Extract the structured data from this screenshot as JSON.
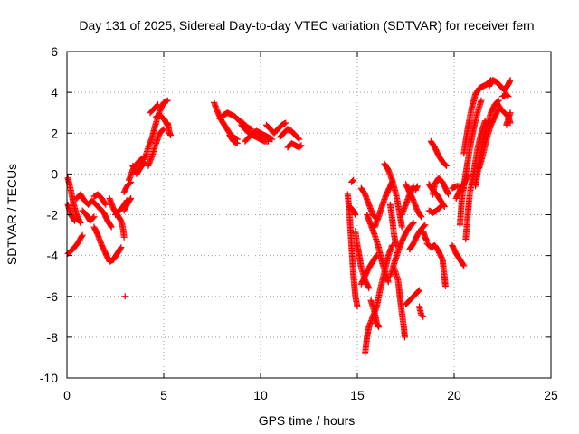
{
  "chart_data": {
    "type": "scatter",
    "title": "Day 131 of 2025, Sidereal Day-to-day VTEC variation (SDTVAR) for receiver fern",
    "xlabel": "GPS time / hours",
    "ylabel": "SDTVAR / TECUs",
    "xlim": [
      0,
      25
    ],
    "ylim": [
      -10,
      6
    ],
    "xticks": [
      0,
      5,
      10,
      15,
      20,
      25
    ],
    "yticks": [
      -10,
      -8,
      -6,
      -4,
      -2,
      0,
      2,
      4,
      6
    ],
    "xtick_labels": [
      "0",
      "5",
      "10",
      "15",
      "20",
      "25"
    ],
    "ytick_labels": [
      "-10",
      "-8",
      "-6",
      "-4",
      "-2",
      "0",
      "2",
      "4",
      "6"
    ],
    "grid": true,
    "marker": "plus",
    "color": "#ff0000",
    "segments": [
      [
        [
          0.05,
          -0.2
        ],
        [
          0.2,
          -0.8
        ],
        [
          0.35,
          -1.5
        ],
        [
          0.5,
          -2.0
        ],
        [
          0.7,
          -2.4
        ]
      ],
      [
        [
          0.05,
          -1.5
        ],
        [
          0.2,
          -2.0
        ],
        [
          0.4,
          -2.3
        ]
      ],
      [
        [
          0.05,
          -3.9
        ],
        [
          0.3,
          -3.7
        ],
        [
          0.55,
          -3.4
        ],
        [
          0.8,
          -3.0
        ]
      ],
      [
        [
          0.5,
          -1.2
        ],
        [
          0.7,
          -1.0
        ],
        [
          0.9,
          -1.3
        ],
        [
          1.1,
          -1.5
        ],
        [
          1.3,
          -1.3
        ],
        [
          1.5,
          -1.5
        ],
        [
          1.7,
          -1.7
        ],
        [
          1.9,
          -1.9
        ],
        [
          2.1,
          -2.3
        ],
        [
          2.3,
          -2.6
        ]
      ],
      [
        [
          0.8,
          -1.8
        ],
        [
          1.0,
          -2.0
        ],
        [
          1.2,
          -2.3
        ],
        [
          1.4,
          -2.1
        ]
      ],
      [
        [
          1.4,
          -2.6
        ],
        [
          1.6,
          -3.0
        ],
        [
          1.8,
          -3.5
        ],
        [
          2.0,
          -3.9
        ],
        [
          2.2,
          -4.3
        ],
        [
          2.4,
          -4.2
        ],
        [
          2.6,
          -3.9
        ],
        [
          2.8,
          -3.6
        ]
      ],
      [
        [
          1.4,
          -1.1
        ],
        [
          1.6,
          -1.0
        ],
        [
          1.8,
          -1.2
        ],
        [
          2.0,
          -1.5
        ]
      ],
      [
        [
          2.2,
          -1.2
        ],
        [
          2.4,
          -1.7
        ],
        [
          2.6,
          -2.0
        ],
        [
          2.8,
          -2.3
        ],
        [
          2.9,
          -2.7
        ],
        [
          2.95,
          -3.1
        ]
      ],
      [
        [
          2.5,
          -2.0
        ],
        [
          2.7,
          -1.8
        ],
        [
          2.9,
          -1.6
        ],
        [
          3.1,
          -1.3
        ]
      ],
      [
        [
          2.95,
          -1.8
        ],
        [
          3.1,
          -1.5
        ],
        [
          3.3,
          -1.2
        ]
      ],
      [
        [
          2.95,
          -0.9
        ],
        [
          3.1,
          -0.6
        ],
        [
          3.3,
          -0.4
        ]
      ],
      [
        [
          3.2,
          -0.3
        ],
        [
          3.4,
          0.2
        ],
        [
          3.6,
          0.5
        ],
        [
          3.8,
          0.7
        ],
        [
          4.0,
          0.8
        ]
      ],
      [
        [
          3.4,
          0.4
        ],
        [
          3.6,
          0.0
        ],
        [
          3.8,
          0.3
        ],
        [
          4.0,
          0.6
        ]
      ],
      [
        [
          4.0,
          0.7
        ],
        [
          4.2,
          1.3
        ],
        [
          4.4,
          1.8
        ],
        [
          4.6,
          2.5
        ],
        [
          4.8,
          3.1
        ],
        [
          5.0,
          3.5
        ],
        [
          5.2,
          3.6
        ]
      ],
      [
        [
          4.2,
          0.4
        ],
        [
          4.4,
          0.9
        ],
        [
          4.6,
          1.5
        ],
        [
          4.8,
          2.0
        ],
        [
          5.0,
          2.2
        ]
      ],
      [
        [
          4.6,
          2.8
        ],
        [
          4.8,
          2.9
        ],
        [
          5.0,
          2.7
        ],
        [
          5.2,
          2.4
        ]
      ],
      [
        [
          4.3,
          3.0
        ],
        [
          4.5,
          3.2
        ],
        [
          4.7,
          3.4
        ]
      ],
      [
        [
          5.2,
          2.5
        ],
        [
          5.3,
          2.0
        ],
        [
          5.35,
          1.9
        ]
      ],
      [
        [
          7.6,
          3.5
        ],
        [
          7.8,
          3.0
        ],
        [
          8.0,
          2.6
        ],
        [
          8.2,
          2.3
        ],
        [
          8.4,
          2.0
        ],
        [
          8.6,
          1.8
        ],
        [
          8.8,
          1.7
        ]
      ],
      [
        [
          7.9,
          2.7
        ],
        [
          8.1,
          2.9
        ],
        [
          8.3,
          3.0
        ],
        [
          8.5,
          2.9
        ],
        [
          8.7,
          2.8
        ],
        [
          8.9,
          2.6
        ],
        [
          9.1,
          2.5
        ],
        [
          9.3,
          2.3
        ],
        [
          9.5,
          2.2
        ]
      ],
      [
        [
          8.4,
          1.9
        ],
        [
          8.6,
          1.6
        ],
        [
          8.8,
          1.5
        ]
      ],
      [
        [
          9.0,
          2.4
        ],
        [
          9.2,
          2.2
        ],
        [
          9.4,
          2.0
        ],
        [
          9.6,
          1.9
        ],
        [
          9.8,
          1.8
        ],
        [
          10.0,
          1.7
        ],
        [
          10.2,
          1.6
        ],
        [
          10.4,
          1.6
        ]
      ],
      [
        [
          9.2,
          1.6
        ],
        [
          9.4,
          1.8
        ],
        [
          9.6,
          2.0
        ],
        [
          9.8,
          2.1
        ],
        [
          10.0,
          2.0
        ],
        [
          10.2,
          1.9
        ],
        [
          10.4,
          1.8
        ],
        [
          10.6,
          1.7
        ]
      ],
      [
        [
          10.3,
          2.4
        ],
        [
          10.5,
          2.2
        ],
        [
          10.7,
          2.0
        ],
        [
          10.9,
          2.2
        ],
        [
          11.1,
          2.4
        ],
        [
          11.3,
          2.5
        ]
      ],
      [
        [
          11.0,
          1.8
        ],
        [
          11.2,
          2.0
        ],
        [
          11.4,
          2.2
        ],
        [
          11.6,
          2.1
        ],
        [
          11.8,
          1.9
        ],
        [
          12.0,
          1.7
        ]
      ],
      [
        [
          11.4,
          1.3
        ],
        [
          11.6,
          1.5
        ],
        [
          11.8,
          1.4
        ],
        [
          12.0,
          1.3
        ],
        [
          12.1,
          1.4
        ]
      ],
      [
        [
          14.5,
          -1.0
        ],
        [
          14.6,
          -2.0
        ],
        [
          14.7,
          -3.5
        ],
        [
          14.8,
          -5.0
        ],
        [
          14.9,
          -6.0
        ],
        [
          15.0,
          -6.5
        ]
      ],
      [
        [
          14.6,
          -1.6
        ],
        [
          14.8,
          -1.8
        ],
        [
          14.9,
          -2.0
        ]
      ],
      [
        [
          14.7,
          -0.4
        ],
        [
          14.8,
          -0.3
        ]
      ],
      [
        [
          14.9,
          -2.8
        ],
        [
          15.0,
          -3.5
        ],
        [
          15.1,
          -4.0
        ],
        [
          15.2,
          -4.6
        ],
        [
          15.4,
          -5.2
        ],
        [
          15.6,
          -5.6
        ]
      ],
      [
        [
          15.2,
          -0.7
        ],
        [
          15.4,
          -1.0
        ],
        [
          15.6,
          -1.5
        ],
        [
          15.8,
          -2.0
        ],
        [
          16.0,
          -2.2
        ]
      ],
      [
        [
          15.2,
          -5.4
        ],
        [
          15.4,
          -5.0
        ],
        [
          15.6,
          -4.6
        ],
        [
          15.8,
          -4.3
        ],
        [
          16.0,
          -4.0
        ]
      ],
      [
        [
          15.4,
          -8.8
        ],
        [
          15.5,
          -8.0
        ],
        [
          15.6,
          -7.5
        ],
        [
          15.8,
          -7.0
        ],
        [
          16.0,
          -6.5
        ],
        [
          16.2,
          -5.6
        ],
        [
          16.4,
          -4.8
        ],
        [
          16.6,
          -4.0
        ],
        [
          16.8,
          -3.5
        ]
      ],
      [
        [
          15.5,
          -2.0
        ],
        [
          15.7,
          -2.5
        ],
        [
          15.9,
          -3.0
        ],
        [
          16.1,
          -3.6
        ],
        [
          16.3,
          -4.4
        ],
        [
          16.5,
          -5.0
        ],
        [
          16.6,
          -5.3
        ]
      ],
      [
        [
          15.7,
          -6.2
        ],
        [
          15.9,
          -6.8
        ],
        [
          16.0,
          -7.3
        ],
        [
          16.1,
          -7.5
        ]
      ],
      [
        [
          15.9,
          -2.6
        ],
        [
          16.1,
          -2.1
        ],
        [
          16.3,
          -1.5
        ],
        [
          16.5,
          -1.0
        ],
        [
          16.7,
          -0.6
        ],
        [
          16.8,
          -0.4
        ]
      ],
      [
        [
          16.4,
          0.5
        ],
        [
          16.6,
          0.2
        ],
        [
          16.8,
          -0.3
        ],
        [
          17.0,
          -1.0
        ],
        [
          17.2,
          -2.0
        ],
        [
          17.3,
          -2.6
        ]
      ],
      [
        [
          16.7,
          -1.5
        ],
        [
          16.8,
          -2.2
        ],
        [
          16.9,
          -3.0
        ],
        [
          17.0,
          -3.5
        ]
      ],
      [
        [
          16.9,
          -4.6
        ],
        [
          17.1,
          -5.2
        ],
        [
          17.2,
          -6.0
        ],
        [
          17.3,
          -6.8
        ],
        [
          17.4,
          -7.5
        ],
        [
          17.45,
          -8.0
        ]
      ],
      [
        [
          16.7,
          -5.0
        ],
        [
          16.9,
          -4.4
        ],
        [
          17.1,
          -3.8
        ],
        [
          17.3,
          -3.3
        ],
        [
          17.5,
          -2.9
        ],
        [
          17.7,
          -2.6
        ],
        [
          17.9,
          -2.4
        ]
      ],
      [
        [
          17.3,
          -2.0
        ],
        [
          17.5,
          -1.5
        ],
        [
          17.7,
          -1.0
        ],
        [
          17.9,
          -0.6
        ]
      ],
      [
        [
          17.5,
          -0.5
        ],
        [
          17.7,
          -0.9
        ],
        [
          17.9,
          -1.3
        ],
        [
          18.1,
          -1.8
        ],
        [
          18.3,
          -2.1
        ]
      ],
      [
        [
          17.5,
          -6.4
        ],
        [
          17.7,
          -6.2
        ],
        [
          17.9,
          -6.0
        ],
        [
          18.1,
          -5.8
        ],
        [
          18.2,
          -5.7
        ]
      ],
      [
        [
          17.7,
          -3.7
        ],
        [
          17.9,
          -3.4
        ],
        [
          18.1,
          -3.0
        ],
        [
          18.3,
          -2.7
        ],
        [
          18.5,
          -2.5
        ]
      ],
      [
        [
          18.0,
          -0.8
        ],
        [
          18.1,
          -0.6
        ]
      ],
      [
        [
          18.2,
          -6.5
        ],
        [
          18.3,
          -6.9
        ],
        [
          18.4,
          -7.0
        ]
      ],
      [
        [
          18.4,
          -2.8
        ],
        [
          18.5,
          -3.1
        ],
        [
          18.6,
          -3.3
        ]
      ],
      [
        [
          18.7,
          -0.5
        ],
        [
          18.9,
          -0.8
        ],
        [
          19.1,
          -1.0
        ],
        [
          19.3,
          -1.3
        ],
        [
          19.5,
          -1.6
        ]
      ],
      [
        [
          18.7,
          -1.8
        ],
        [
          18.9,
          -1.9
        ],
        [
          19.1,
          -1.8
        ],
        [
          19.3,
          -1.6
        ]
      ],
      [
        [
          18.6,
          -3.4
        ],
        [
          18.8,
          -3.6
        ],
        [
          19.0,
          -3.5
        ],
        [
          19.2,
          -3.8
        ],
        [
          19.4,
          -4.2
        ],
        [
          19.5,
          -5.0
        ],
        [
          19.55,
          -5.5
        ]
      ],
      [
        [
          18.8,
          1.6
        ],
        [
          19.0,
          1.3
        ],
        [
          19.2,
          0.9
        ],
        [
          19.4,
          0.6
        ],
        [
          19.6,
          0.4
        ]
      ],
      [
        [
          18.9,
          -1.0
        ],
        [
          19.0,
          -0.5
        ],
        [
          19.2,
          -0.2
        ],
        [
          19.4,
          -0.4
        ],
        [
          19.6,
          -0.8
        ],
        [
          19.7,
          -1.0
        ]
      ],
      [
        [
          19.9,
          -3.5
        ],
        [
          20.1,
          -3.9
        ],
        [
          20.3,
          -4.2
        ],
        [
          20.5,
          -4.5
        ]
      ],
      [
        [
          19.9,
          -0.7
        ],
        [
          20.1,
          -0.6
        ],
        [
          20.3,
          -0.6
        ],
        [
          20.5,
          -0.7
        ]
      ],
      [
        [
          20.1,
          -1.2
        ],
        [
          20.3,
          -0.8
        ],
        [
          20.5,
          -0.5
        ],
        [
          20.7,
          -0.1
        ]
      ],
      [
        [
          20.3,
          -2.5
        ],
        [
          20.4,
          -1.2
        ],
        [
          20.6,
          0.0
        ],
        [
          20.8,
          1.2
        ],
        [
          21.0,
          2.2
        ],
        [
          21.2,
          3.0
        ],
        [
          21.4,
          3.6
        ]
      ],
      [
        [
          20.6,
          -3.2
        ],
        [
          20.7,
          -2.0
        ],
        [
          20.8,
          -1.0
        ],
        [
          21.0,
          0.0
        ],
        [
          21.2,
          1.2
        ],
        [
          21.4,
          2.0
        ],
        [
          21.6,
          2.6
        ]
      ],
      [
        [
          20.5,
          1.0
        ],
        [
          20.7,
          2.2
        ],
        [
          20.9,
          3.2
        ],
        [
          21.1,
          3.9
        ],
        [
          21.3,
          4.2
        ],
        [
          21.5,
          4.3
        ],
        [
          21.7,
          4.4
        ],
        [
          21.9,
          4.6
        ]
      ],
      [
        [
          21.1,
          -0.6
        ],
        [
          21.3,
          0.6
        ],
        [
          21.5,
          1.6
        ],
        [
          21.7,
          2.4
        ],
        [
          21.9,
          3.0
        ],
        [
          22.1,
          3.4
        ],
        [
          22.3,
          3.6
        ]
      ],
      [
        [
          21.3,
          0.3
        ],
        [
          21.5,
          1.0
        ],
        [
          21.7,
          1.8
        ],
        [
          21.9,
          2.4
        ],
        [
          22.1,
          2.8
        ],
        [
          22.3,
          3.2
        ]
      ],
      [
        [
          21.8,
          4.3
        ],
        [
          22.0,
          4.6
        ],
        [
          22.2,
          4.5
        ],
        [
          22.4,
          4.3
        ],
        [
          22.6,
          4.1
        ],
        [
          22.8,
          4.4
        ],
        [
          22.9,
          4.6
        ]
      ],
      [
        [
          22.2,
          3.5
        ],
        [
          22.4,
          3.2
        ],
        [
          22.6,
          3.0
        ],
        [
          22.8,
          2.8
        ],
        [
          22.9,
          2.5
        ]
      ],
      [
        [
          22.5,
          3.8
        ],
        [
          22.7,
          3.9
        ],
        [
          22.8,
          3.8
        ]
      ],
      [
        [
          22.7,
          2.4
        ],
        [
          22.8,
          2.7
        ],
        [
          22.9,
          3.0
        ]
      ]
    ],
    "isolated_points": [
      [
        3.0,
        -6.0
      ]
    ]
  }
}
